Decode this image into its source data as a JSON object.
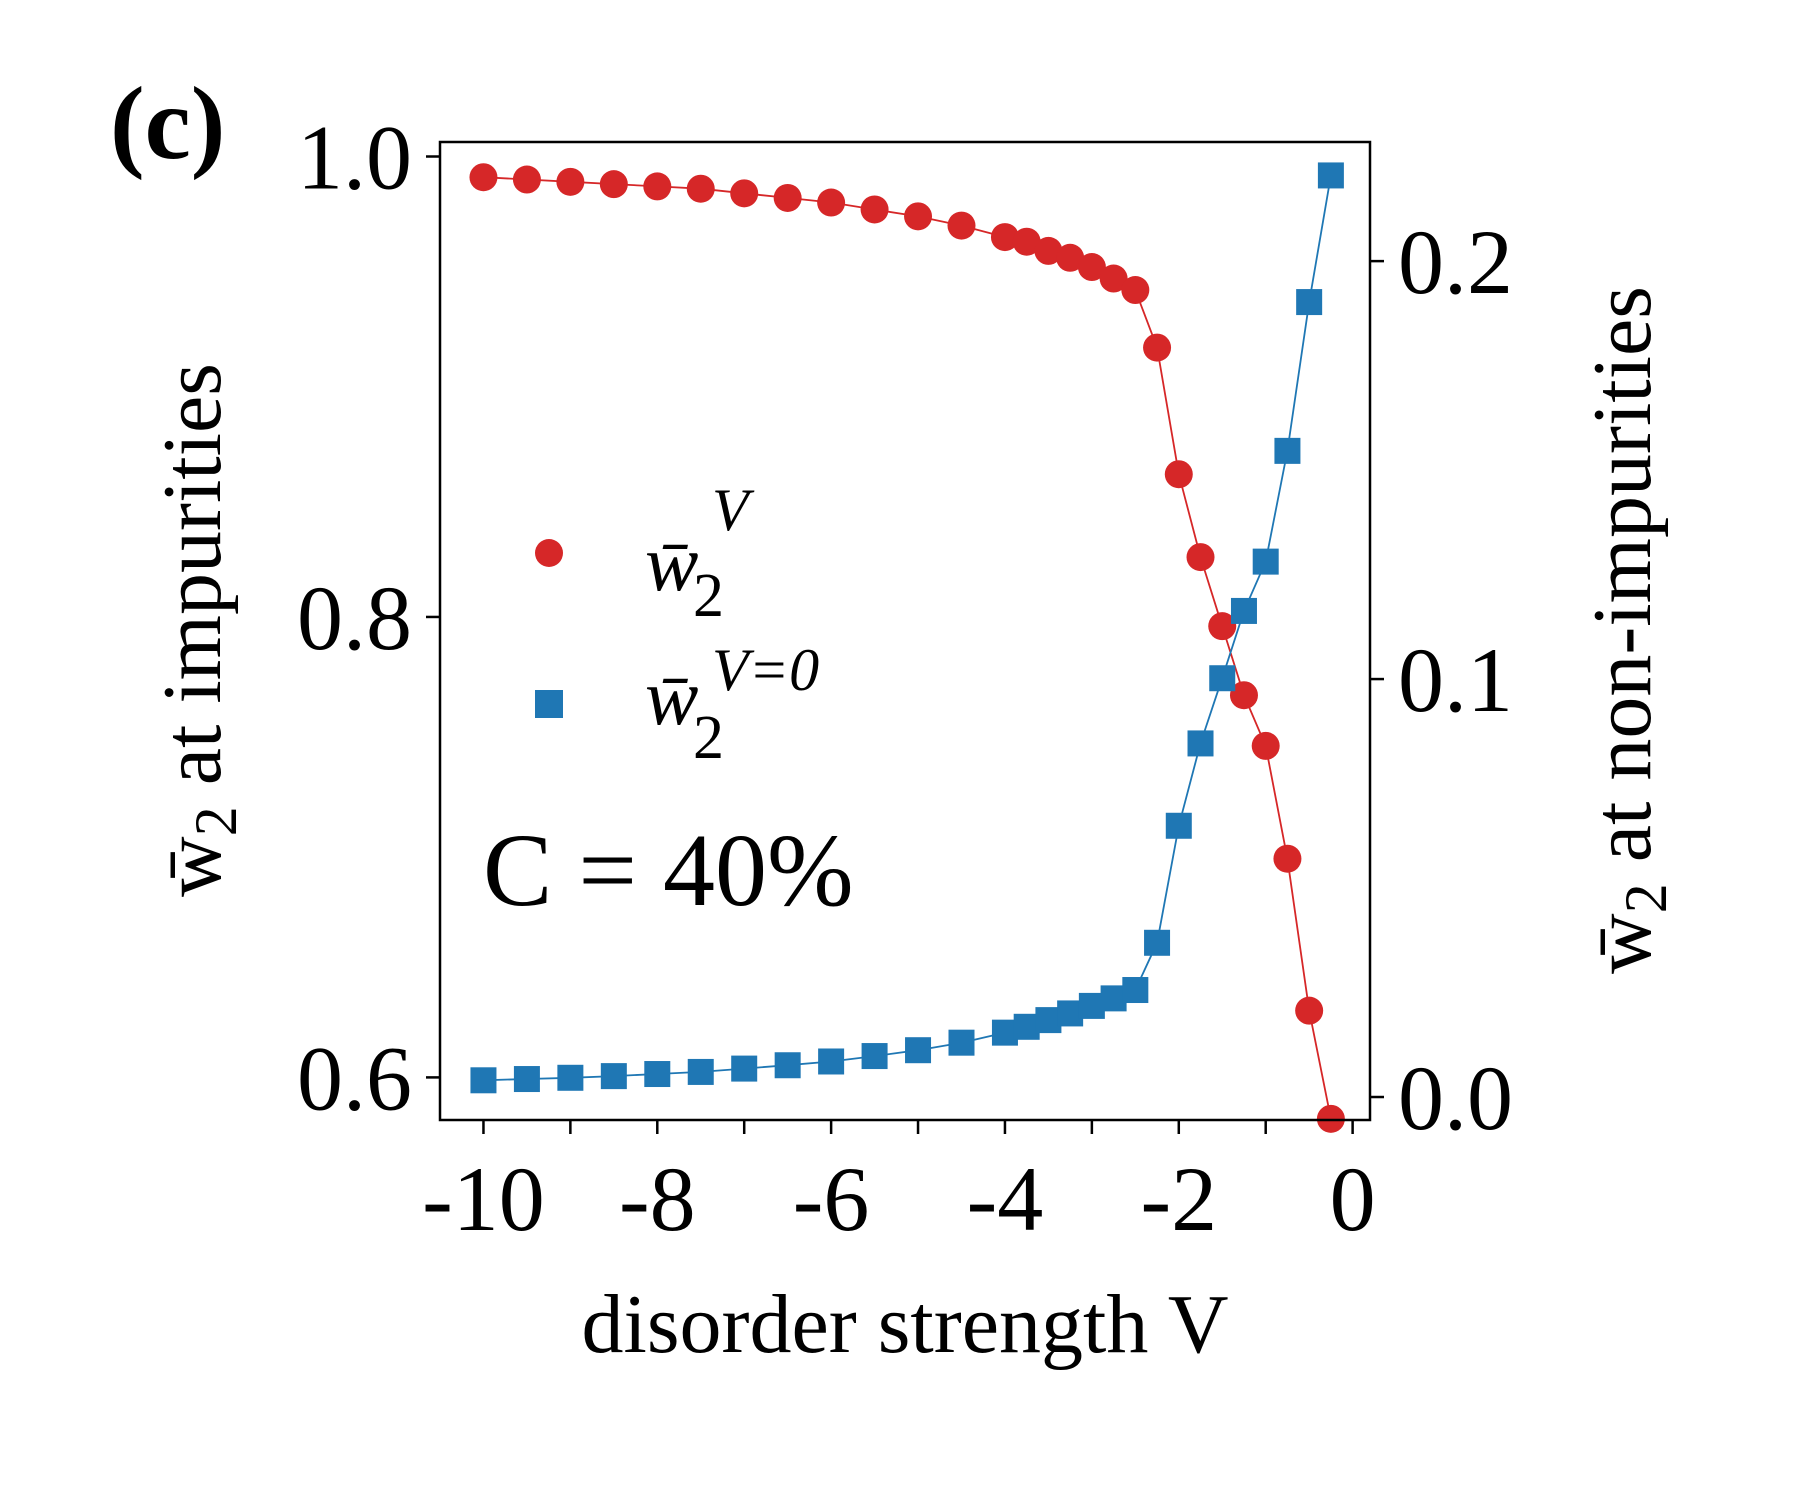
{
  "panel_label": "(c)",
  "annotation": "C = 40%",
  "chart_data": {
    "type": "line",
    "xlabel": "disorder strength V",
    "ylabel_left": {
      "base": "w̄",
      "sub": "2",
      "rest": " at impurities"
    },
    "ylabel_right": {
      "base": "w̄",
      "sub": "2",
      "rest": " at non-impurities"
    },
    "xlim": [
      -10.5,
      0.2
    ],
    "ylim_left": [
      0.5815,
      1.0063
    ],
    "ylim_right": [
      -0.0055,
      0.2285
    ],
    "x_ticks": [
      -10,
      -9,
      -8,
      -7,
      -6,
      -5,
      -4,
      -3,
      -2,
      -1,
      0
    ],
    "x_tick_labels": [
      {
        "value": -10,
        "label": "-10"
      },
      {
        "value": -8,
        "label": "-8"
      },
      {
        "value": -6,
        "label": "-6"
      },
      {
        "value": -4,
        "label": "-4"
      },
      {
        "value": -2,
        "label": "-2"
      },
      {
        "value": 0,
        "label": "0"
      }
    ],
    "y_ticks_left": [
      {
        "value": 0.6,
        "label": "0.6"
      },
      {
        "value": 0.8,
        "label": "0.8"
      },
      {
        "value": 1.0,
        "label": "1.0"
      }
    ],
    "y_ticks_right": [
      {
        "value": 0.0,
        "label": "0.0"
      },
      {
        "value": 0.1,
        "label": "0.1"
      },
      {
        "value": 0.2,
        "label": "0.2"
      }
    ],
    "legend_position": "center-left",
    "series": [
      {
        "name": "w̄2^V",
        "legend_base": "w̄",
        "legend_sup": "V",
        "legend_sub": "2",
        "axis": "left",
        "marker": "circle",
        "color": "#d62728",
        "x": [
          -10,
          -9.5,
          -9,
          -8.5,
          -8,
          -7.5,
          -7,
          -6.5,
          -6,
          -5.5,
          -5,
          -4.5,
          -4,
          -3.75,
          -3.5,
          -3.25,
          -3,
          -2.75,
          -2.5,
          -2.25,
          -2,
          -1.75,
          -1.5,
          -1.25,
          -1,
          -0.75,
          -0.5,
          -0.25
        ],
        "values": [
          0.991,
          0.99,
          0.989,
          0.988,
          0.987,
          0.986,
          0.984,
          0.982,
          0.98,
          0.977,
          0.974,
          0.97,
          0.965,
          0.963,
          0.959,
          0.956,
          0.952,
          0.947,
          0.942,
          0.917,
          0.862,
          0.826,
          0.796,
          0.766,
          0.744,
          0.695,
          0.629,
          0.582
        ]
      },
      {
        "name": "w̄2^(V=0)",
        "legend_base": "w̄",
        "legend_sup": "V=0",
        "legend_sub": "2",
        "axis": "right",
        "marker": "square",
        "color": "#1f77b4",
        "x": [
          -10,
          -9.5,
          -9,
          -8.5,
          -8,
          -7.5,
          -7,
          -6.5,
          -6,
          -5.5,
          -5,
          -4.5,
          -4,
          -3.75,
          -3.5,
          -3.25,
          -3,
          -2.75,
          -2.5,
          -2.25,
          -2,
          -1.75,
          -1.5,
          -1.25,
          -1,
          -0.75,
          -0.5,
          -0.25
        ],
        "values": [
          0.004,
          0.0043,
          0.0046,
          0.005,
          0.0055,
          0.006,
          0.0068,
          0.0076,
          0.0085,
          0.0098,
          0.0112,
          0.013,
          0.0154,
          0.0168,
          0.0184,
          0.02,
          0.0218,
          0.0236,
          0.0256,
          0.0369,
          0.0649,
          0.0846,
          0.1002,
          0.1163,
          0.1281,
          0.1546,
          0.1902,
          0.2205
        ]
      }
    ]
  }
}
